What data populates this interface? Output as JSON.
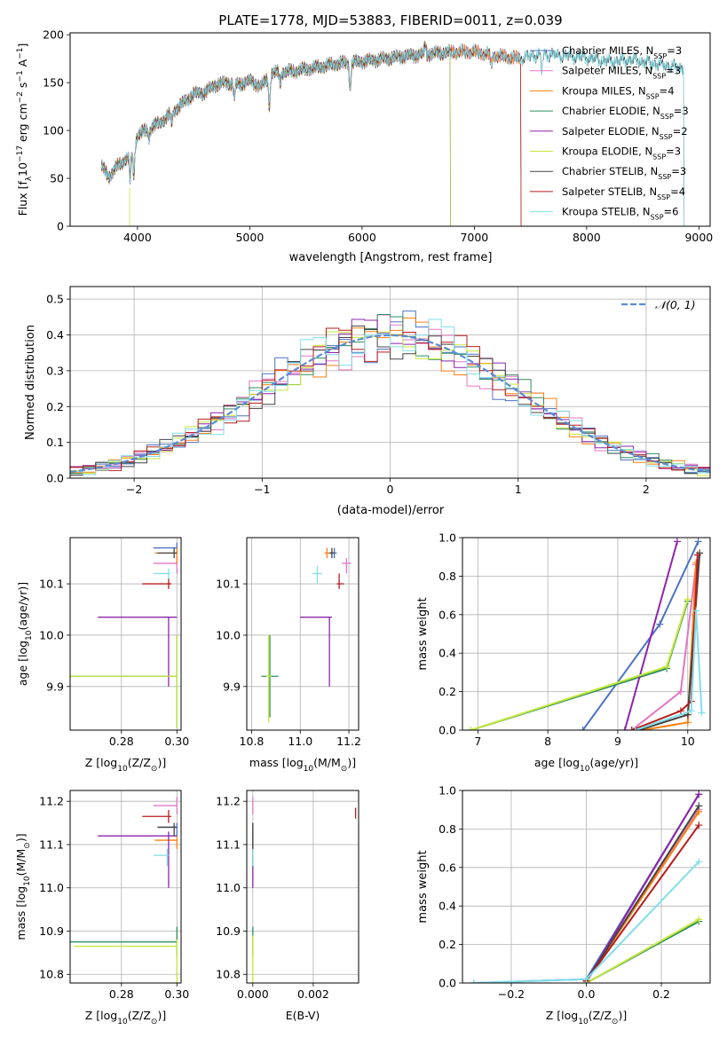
{
  "colors": {
    "chabrier_miles": "#4c72c4",
    "salpeter_miles": "#e377c2",
    "kroupa_miles": "#ff7f0e",
    "chabrier_elodie": "#2f8f5f",
    "salpeter_elodie": "#8e24aa",
    "kroupa_elodie": "#c5e83a",
    "chabrier_stelib": "#444444",
    "salpeter_stelib": "#b71c1c",
    "kroupa_stelib": "#80deea",
    "gauss": "#5b8bd9"
  },
  "chart_data": [
    {
      "id": "spectrum",
      "type": "line",
      "title": "PLATE=1778, MJD=53883, FIBERID=0011, z=0.039",
      "xlabel": "wavelength [Angstrom, rest frame]",
      "ylabel_parts": [
        "Flux [f",
        "λ",
        "10",
        "−17",
        " erg cm",
        "−2",
        " s",
        "−1",
        " A",
        "−1",
        "]"
      ],
      "xlim": [
        3400,
        9100
      ],
      "ylim": [
        0,
        202
      ],
      "xticks": [
        "4000",
        "5000",
        "6000",
        "7000",
        "8000",
        "9000"
      ],
      "yticks": [
        "0",
        "50",
        "100",
        "150",
        "200"
      ],
      "continuum": [
        [
          3680,
          62
        ],
        [
          3750,
          52
        ],
        [
          3830,
          64
        ],
        [
          3900,
          70
        ],
        [
          3960,
          80
        ],
        [
          4000,
          95
        ],
        [
          4100,
          102
        ],
        [
          4200,
          108
        ],
        [
          4300,
          118
        ],
        [
          4400,
          128
        ],
        [
          4500,
          138
        ],
        [
          4600,
          140
        ],
        [
          4700,
          148
        ],
        [
          4800,
          150
        ],
        [
          4900,
          148
        ],
        [
          5000,
          152
        ],
        [
          5100,
          146
        ],
        [
          5200,
          160
        ],
        [
          5400,
          162
        ],
        [
          5600,
          166
        ],
        [
          5800,
          170
        ],
        [
          6000,
          172
        ],
        [
          6200,
          175
        ],
        [
          6400,
          178
        ],
        [
          6600,
          180
        ],
        [
          6800,
          182
        ],
        [
          7000,
          182
        ],
        [
          7200,
          178
        ],
        [
          7400,
          175
        ],
        [
          7600,
          180
        ],
        [
          7800,
          178
        ],
        [
          8000,
          176
        ],
        [
          8200,
          172
        ],
        [
          8400,
          174
        ],
        [
          8600,
          170
        ],
        [
          8800,
          166
        ]
      ],
      "series": [
        {
          "name": "Chabrier MILES",
          "nssp": "3",
          "color_key": "chabrier_miles",
          "xmax": 7420
        },
        {
          "name": "Salpeter MILES",
          "nssp": "3",
          "color_key": "salpeter_miles",
          "xmax": 7420
        },
        {
          "name": "Kroupa MILES",
          "nssp": "4",
          "color_key": "kroupa_miles",
          "xmax": 7420
        },
        {
          "name": "Chabrier ELODIE",
          "nssp": "3",
          "color_key": "chabrier_elodie",
          "xmax": 6790
        },
        {
          "name": "Salpeter ELODIE",
          "nssp": "2",
          "color_key": "salpeter_elodie",
          "xmax": 6790
        },
        {
          "name": "Kroupa ELODIE",
          "nssp": "3",
          "color_key": "kroupa_elodie",
          "xmax": 6790
        },
        {
          "name": "Chabrier STELIB",
          "nssp": "3",
          "color_key": "chabrier_stelib",
          "xmax": 8870
        },
        {
          "name": "Salpeter STELIB",
          "nssp": "4",
          "color_key": "salpeter_stelib",
          "xmax": 7420
        },
        {
          "name": "Kroupa STELIB",
          "nssp": "6",
          "color_key": "kroupa_stelib",
          "xmax": 8870
        }
      ]
    },
    {
      "id": "residuals",
      "type": "histogram",
      "xlabel": "(data-model)/error",
      "ylabel": "Normed distribution",
      "xlim": [
        -2.5,
        2.5
      ],
      "ylim": [
        0,
        0.535
      ],
      "xticks": [
        "−2",
        "−1",
        "0",
        "1",
        "2"
      ],
      "yticks": [
        "0.0",
        "0.1",
        "0.2",
        "0.3",
        "0.4",
        "0.5"
      ],
      "grid": true,
      "legend": "𝒩(0, 1)",
      "bin_width": 0.1
    },
    {
      "id": "age_vs_Z",
      "type": "errorbar",
      "xlabel_parts": [
        "Z [log",
        "10",
        "(Z/Z",
        "⊙",
        ")]"
      ],
      "ylabel_parts": [
        "age  [log",
        "10",
        "(age/yr)]"
      ],
      "xlim": [
        0.2615,
        0.3015
      ],
      "ylim": [
        9.815,
        10.19
      ],
      "xticks": [
        "0.28",
        "0.30"
      ],
      "yticks": [
        "9.9",
        "10.0",
        "10.1"
      ],
      "grid": true,
      "points": [
        {
          "c": "chabrier_miles",
          "x": 0.3,
          "xl": 0.2915,
          "xh": 0.3,
          "y": 10.17,
          "yl": 10.16,
          "yh": 10.18
        },
        {
          "c": "salpeter_miles",
          "x": 0.3,
          "xl": 0.2915,
          "xh": 0.3,
          "y": 10.14,
          "yl": 10.12,
          "yh": 10.16
        },
        {
          "c": "kroupa_miles",
          "x": 0.3,
          "xl": 0.292,
          "xh": 0.3,
          "y": 10.16,
          "yl": 10.14,
          "yh": 10.17
        },
        {
          "c": "chabrier_elodie",
          "x": 0.3,
          "xl": 0.2615,
          "xh": 0.3,
          "y": 9.92,
          "yl": 9.82,
          "yh": 10.0
        },
        {
          "c": "salpeter_elodie",
          "x": 0.297,
          "xl": 0.2715,
          "xh": 0.3,
          "y": 10.035,
          "yl": 9.9,
          "yh": 10.035
        },
        {
          "c": "kroupa_elodie",
          "x": 0.3,
          "xl": 0.2615,
          "xh": 0.3,
          "y": 9.92,
          "yl": 9.82,
          "yh": 10.0
        },
        {
          "c": "chabrier_stelib",
          "x": 0.299,
          "xl": 0.293,
          "xh": 0.3,
          "y": 10.16,
          "yl": 10.15,
          "yh": 10.17
        },
        {
          "c": "salpeter_stelib",
          "x": 0.297,
          "xl": 0.2875,
          "xh": 0.298,
          "y": 10.1,
          "yl": 10.09,
          "yh": 10.11
        },
        {
          "c": "kroupa_stelib",
          "x": 0.297,
          "xl": 0.2915,
          "xh": 0.2975,
          "y": 10.12,
          "yl": 10.11,
          "yh": 10.13
        }
      ]
    },
    {
      "id": "age_vs_mass",
      "type": "errorbar",
      "xlabel_parts": [
        "mass [log",
        "10",
        "(M/M",
        "⊙",
        ")]"
      ],
      "xlim": [
        10.78,
        11.24
      ],
      "ylim": [
        9.815,
        10.19
      ],
      "xticks": [
        "10.8",
        "11.0",
        "11.2"
      ],
      "yticks": [
        "9.9",
        "10.0",
        "10.1"
      ],
      "grid": true,
      "points": [
        {
          "c": "chabrier_miles",
          "x": 11.14,
          "xl": 11.12,
          "xh": 11.15,
          "y": 10.16,
          "yl": 10.15,
          "yh": 10.17
        },
        {
          "c": "salpeter_miles",
          "x": 11.19,
          "xl": 11.17,
          "xh": 11.21,
          "y": 10.14,
          "yl": 10.12,
          "yh": 10.15
        },
        {
          "c": "kroupa_miles",
          "x": 11.11,
          "xl": 11.1,
          "xh": 11.12,
          "y": 10.16,
          "yl": 10.15,
          "yh": 10.17
        },
        {
          "c": "chabrier_elodie",
          "x": 10.875,
          "xl": 10.84,
          "xh": 10.91,
          "y": 9.92,
          "yl": 9.84,
          "yh": 10.0
        },
        {
          "c": "salpeter_elodie",
          "x": 11.12,
          "xl": 11.0,
          "xh": 11.13,
          "y": 10.035,
          "yl": 9.9,
          "yh": 10.035
        },
        {
          "c": "kroupa_elodie",
          "x": 10.87,
          "xl": 10.86,
          "xh": 10.88,
          "y": 9.92,
          "yl": 9.83,
          "yh": 10.0
        },
        {
          "c": "chabrier_stelib",
          "x": 11.13,
          "xl": 11.12,
          "xh": 11.14,
          "y": 10.16,
          "yl": 10.15,
          "yh": 10.17
        },
        {
          "c": "salpeter_stelib",
          "x": 11.16,
          "xl": 11.15,
          "xh": 11.18,
          "y": 10.1,
          "yl": 10.09,
          "yh": 10.12
        },
        {
          "c": "kroupa_stelib",
          "x": 11.07,
          "xl": 11.05,
          "xh": 11.09,
          "y": 10.12,
          "yl": 10.1,
          "yh": 10.135
        }
      ]
    },
    {
      "id": "mass_weight_vs_age",
      "type": "line",
      "xlabel_parts": [
        "age  [log",
        "10",
        "(age/yr)]"
      ],
      "ylabel": "mass weight",
      "xlim": [
        6.78,
        10.32
      ],
      "ylim": [
        0,
        1.0
      ],
      "xticks": [
        "7",
        "8",
        "9",
        "10"
      ],
      "yticks": [
        "0.0",
        "0.2",
        "0.4",
        "0.6",
        "0.8",
        "1.0"
      ],
      "grid": true,
      "series": [
        {
          "c": "chabrier_miles",
          "points": [
            [
              8.5,
              0.0
            ],
            [
              9.6,
              0.55
            ],
            [
              10.15,
              0.98
            ]
          ]
        },
        {
          "c": "salpeter_miles",
          "points": [
            [
              9.2,
              0.0
            ],
            [
              9.9,
              0.2
            ],
            [
              10.12,
              0.86
            ]
          ]
        },
        {
          "c": "kroupa_miles",
          "points": [
            [
              9.35,
              0.0
            ],
            [
              10.0,
              0.04
            ],
            [
              10.12,
              0.87
            ]
          ]
        },
        {
          "c": "chabrier_elodie",
          "points": [
            [
              6.9,
              0.0
            ],
            [
              9.7,
              0.32
            ],
            [
              10.0,
              0.67
            ]
          ]
        },
        {
          "c": "salpeter_elodie",
          "points": [
            [
              9.1,
              0.0
            ],
            [
              9.85,
              0.98
            ]
          ]
        },
        {
          "c": "kroupa_elodie",
          "points": [
            [
              6.9,
              0.0
            ],
            [
              9.7,
              0.33
            ],
            [
              10.0,
              0.68
            ]
          ]
        },
        {
          "c": "chabrier_stelib",
          "points": [
            [
              9.3,
              0.0
            ],
            [
              10.0,
              0.08
            ],
            [
              10.17,
              0.92
            ]
          ]
        },
        {
          "c": "salpeter_stelib",
          "points": [
            [
              9.2,
              0.0
            ],
            [
              9.9,
              0.1
            ],
            [
              10.05,
              0.15
            ],
            [
              10.14,
              0.91
            ]
          ]
        },
        {
          "c": "kroupa_stelib",
          "points": [
            [
              9.25,
              0.0
            ],
            [
              10.05,
              0.1
            ],
            [
              10.12,
              0.62
            ],
            [
              10.2,
              0.09
            ]
          ]
        }
      ]
    },
    {
      "id": "mass_vs_Z",
      "type": "errorbar",
      "xlabel_parts": [
        "Z [log",
        "10",
        "(Z/Z",
        "⊙",
        ")]"
      ],
      "ylabel_parts": [
        "mass [log",
        "10",
        "(M/M",
        "⊙",
        ")]"
      ],
      "xlim": [
        0.2615,
        0.3015
      ],
      "ylim": [
        10.78,
        11.225
      ],
      "xticks": [
        "0.28",
        "0.30"
      ],
      "yticks": [
        "10.8",
        "10.9",
        "11.0",
        "11.1",
        "11.2"
      ],
      "grid": true,
      "points": [
        {
          "c": "chabrier_miles",
          "x": 0.3,
          "xl": 0.293,
          "xh": 0.3,
          "y": 11.14,
          "yl": 11.12,
          "yh": 11.15
        },
        {
          "c": "salpeter_miles",
          "x": 0.3,
          "xl": 0.2915,
          "xh": 0.3,
          "y": 11.19,
          "yl": 11.17,
          "yh": 11.21
        },
        {
          "c": "kroupa_miles",
          "x": 0.3,
          "xl": 0.292,
          "xh": 0.3,
          "y": 11.11,
          "yl": 11.09,
          "yh": 11.12
        },
        {
          "c": "chabrier_elodie",
          "x": 0.3,
          "xl": 0.2615,
          "xh": 0.3,
          "y": 10.875,
          "yl": 10.84,
          "yh": 10.91
        },
        {
          "c": "salpeter_elodie",
          "x": 0.297,
          "xl": 0.2715,
          "xh": 0.3,
          "y": 11.12,
          "yl": 11.0,
          "yh": 11.13
        },
        {
          "c": "kroupa_elodie",
          "x": 0.3,
          "xl": 0.263,
          "xh": 0.3,
          "y": 10.865,
          "yl": 10.78,
          "yh": 10.88
        },
        {
          "c": "chabrier_stelib",
          "x": 0.299,
          "xl": 0.293,
          "xh": 0.3,
          "y": 11.14,
          "yl": 11.12,
          "yh": 11.15
        },
        {
          "c": "salpeter_stelib",
          "x": 0.297,
          "xl": 0.2875,
          "xh": 0.298,
          "y": 11.165,
          "yl": 11.15,
          "yh": 11.18
        },
        {
          "c": "kroupa_stelib",
          "x": 0.2965,
          "xl": 0.2915,
          "xh": 0.297,
          "y": 11.075,
          "yl": 11.05,
          "yh": 11.09
        }
      ]
    },
    {
      "id": "mass_vs_ebv",
      "type": "errorbar",
      "xlabel": "E(B-V)",
      "xlim": [
        -0.0002,
        0.0035
      ],
      "ylim": [
        10.78,
        11.225
      ],
      "xticks": [
        "0.000",
        "0.002"
      ],
      "yticks": [
        "10.8",
        "10.9",
        "11.0",
        "11.1",
        "11.2"
      ],
      "grid": true,
      "points": [
        {
          "c": "chabrier_miles",
          "x": 0.0,
          "xl": 0.0,
          "xh": 0.0,
          "y": 11.14,
          "yl": 11.12,
          "yh": 11.15
        },
        {
          "c": "salpeter_miles",
          "x": 0.0,
          "xl": 0.0,
          "xh": 0.0,
          "y": 11.19,
          "yl": 11.17,
          "yh": 11.21
        },
        {
          "c": "kroupa_miles",
          "x": 0.0,
          "xl": 0.0,
          "xh": 0.0,
          "y": 11.11,
          "yl": 11.09,
          "yh": 11.12
        },
        {
          "c": "chabrier_elodie",
          "x": 0.0,
          "xl": 0.0,
          "xh": 0.0,
          "y": 10.875,
          "yl": 10.84,
          "yh": 10.91
        },
        {
          "c": "salpeter_elodie",
          "x": 0.0,
          "xl": 0.0,
          "xh": 0.0,
          "y": 11.05,
          "yl": 11.0,
          "yh": 11.13
        },
        {
          "c": "kroupa_elodie",
          "x": 0.0,
          "xl": 0.0,
          "xh": 0.0,
          "y": 10.84,
          "yl": 10.78,
          "yh": 10.89
        },
        {
          "c": "chabrier_stelib",
          "x": 0.0,
          "xl": 0.0,
          "xh": 0.0,
          "y": 11.1,
          "yl": 11.05,
          "yh": 11.15
        },
        {
          "c": "salpeter_stelib",
          "x": 0.0034,
          "xl": 0.0034,
          "xh": 0.0034,
          "y": 11.17,
          "yl": 11.16,
          "yh": 11.185
        },
        {
          "c": "kroupa_stelib",
          "x": 0.0,
          "xl": 0.0,
          "xh": 0.0,
          "y": 11.075,
          "yl": 11.05,
          "yh": 11.09
        }
      ]
    },
    {
      "id": "mass_weight_vs_Z",
      "type": "line",
      "xlabel_parts": [
        "Z [log",
        "10",
        "(Z/Z",
        "⊙",
        ")]"
      ],
      "ylabel": "mass weight",
      "xlim": [
        -0.33,
        0.33
      ],
      "ylim": [
        0,
        1.0
      ],
      "xticks": [
        "−0.2",
        "0.0",
        "0.2"
      ],
      "yticks": [
        "0.0",
        "0.2",
        "0.4",
        "0.6",
        "0.8",
        "1.0"
      ],
      "grid": true,
      "series": [
        {
          "c": "chabrier_miles",
          "points": [
            [
              -0.3,
              0.0
            ],
            [
              0.0,
              0.02
            ],
            [
              0.3,
              0.98
            ]
          ]
        },
        {
          "c": "salpeter_miles",
          "points": [
            [
              0.0,
              0.01
            ],
            [
              0.3,
              0.9
            ]
          ]
        },
        {
          "c": "kroupa_miles",
          "points": [
            [
              0.0,
              0.01
            ],
            [
              0.3,
              0.89
            ]
          ]
        },
        {
          "c": "chabrier_elodie",
          "points": [
            [
              0.0,
              0.0
            ],
            [
              0.3,
              0.32
            ]
          ]
        },
        {
          "c": "salpeter_elodie",
          "points": [
            [
              0.0,
              0.01
            ],
            [
              0.3,
              0.98
            ]
          ]
        },
        {
          "c": "kroupa_elodie",
          "points": [
            [
              0.0,
              0.0
            ],
            [
              0.3,
              0.33
            ]
          ]
        },
        {
          "c": "chabrier_stelib",
          "points": [
            [
              0.0,
              0.01
            ],
            [
              0.3,
              0.92
            ]
          ]
        },
        {
          "c": "salpeter_stelib",
          "points": [
            [
              0.0,
              0.01
            ],
            [
              0.3,
              0.82
            ]
          ]
        },
        {
          "c": "kroupa_stelib",
          "points": [
            [
              -0.3,
              0.0
            ],
            [
              0.0,
              0.02
            ],
            [
              0.3,
              0.63
            ]
          ]
        }
      ]
    }
  ]
}
